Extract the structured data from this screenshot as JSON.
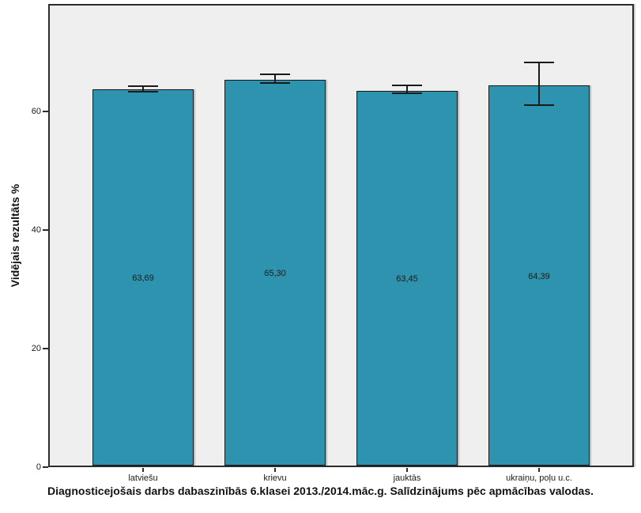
{
  "chart_data": {
    "type": "bar",
    "title": "Diagnosticejošais darbs dabaszinībās 6.klasei 2013./2014.māc.g. Salīdzinājums pēc apmācības valodas.",
    "ylabel": "Vidējais rezultāts %",
    "xlabel": "",
    "categories": [
      "latviešu",
      "krievu",
      "jauktās",
      "ukraiņu, poļu u.c."
    ],
    "values": [
      63.69,
      65.3,
      63.45,
      64.39
    ],
    "value_labels": [
      "63,69",
      "65,30",
      "63,45",
      "64,39"
    ],
    "error_upper": [
      64.3,
      66.3,
      64.4,
      68.3
    ],
    "error_lower": [
      63.4,
      64.8,
      63.1,
      61.1
    ],
    "yticks": [
      0,
      20,
      40,
      60
    ],
    "ylim": [
      0,
      78
    ],
    "grid": false,
    "legend": null,
    "colors": {
      "bar_fill": "#2E93AE",
      "bar_border": "#1a1a1a",
      "plot_background": "#EFEFEF",
      "error_bar": "#1a1a1a",
      "text": "#1a1a1a"
    }
  }
}
